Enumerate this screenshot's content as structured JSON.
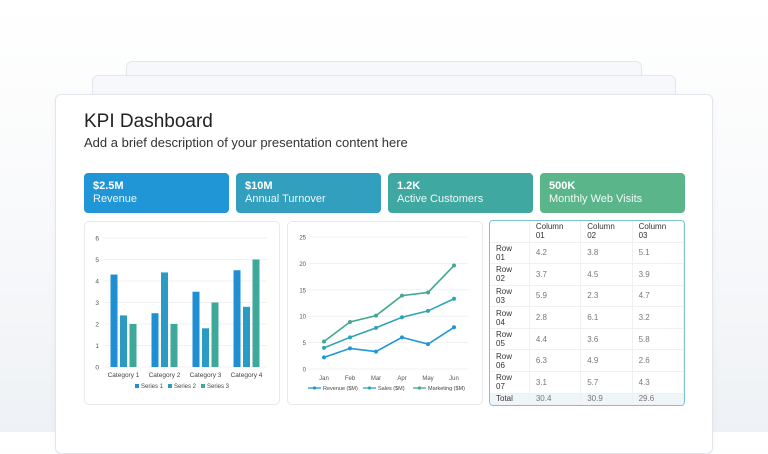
{
  "header": {
    "title": "KPI Dashboard",
    "subtitle": "Add a brief description of your presentation content here"
  },
  "kpis": [
    {
      "value": "$2.5M",
      "label": "Revenue",
      "color": "#2196d6"
    },
    {
      "value": "$10M",
      "label": "Annual Turnover",
      "color": "#339fbf"
    },
    {
      "value": "1.2K",
      "label": "Active Customers",
      "color": "#3fa8a0"
    },
    {
      "value": "500K",
      "label": "Monthly Web Visits",
      "color": "#5ab58a"
    }
  ],
  "chart_data": [
    {
      "type": "bar",
      "categories": [
        "Category 1",
        "Category 2",
        "Category 3",
        "Category 4"
      ],
      "ylim": [
        0,
        6
      ],
      "yticks": [
        "0",
        "1",
        "2",
        "3",
        "4",
        "5",
        "6"
      ],
      "legend": "bottom",
      "grid": true,
      "series": [
        {
          "name": "Series 1",
          "values": [
            4.3,
            2.5,
            3.5,
            4.5
          ],
          "color": "#1f8fd4"
        },
        {
          "name": "Series 2",
          "values": [
            2.4,
            4.4,
            1.8,
            2.8
          ],
          "color": "#2b9bc4"
        },
        {
          "name": "Series 3",
          "values": [
            2,
            2,
            3,
            5
          ],
          "color": "#3ea89a"
        }
      ]
    },
    {
      "type": "line",
      "categories": [
        "Jan",
        "Feb",
        "Mar",
        "Apr",
        "May",
        "Jun"
      ],
      "ylim": [
        0,
        25
      ],
      "yticks": [
        "0",
        "5",
        "10",
        "15",
        "20",
        "25"
      ],
      "legend": "bottom",
      "grid": true,
      "series": [
        {
          "name": "Revenue ($M)",
          "values": [
            2.2,
            3.9,
            3.3,
            6.0,
            4.7,
            7.9
          ],
          "color": "#2196d6"
        },
        {
          "name": "Sales ($M)",
          "values": [
            4.0,
            6.0,
            7.8,
            9.8,
            11.0,
            13.3
          ],
          "color": "#2fa4b5"
        },
        {
          "name": "Marketing ($M)",
          "values": [
            5.2,
            8.9,
            10.1,
            13.9,
            14.5,
            19.6
          ],
          "color": "#43a88f"
        }
      ]
    }
  ],
  "table": {
    "columns": [
      "",
      "Column 01",
      "Column 02",
      "Column 03"
    ],
    "rows": [
      [
        "Row 01",
        "4.2",
        "3.8",
        "5.1"
      ],
      [
        "Row 02",
        "3.7",
        "4.5",
        "3.9"
      ],
      [
        "Row 03",
        "5.9",
        "2.3",
        "4.7"
      ],
      [
        "Row 04",
        "2.8",
        "6.1",
        "3.2"
      ],
      [
        "Row 05",
        "4.4",
        "3.6",
        "5.8"
      ],
      [
        "Row 06",
        "6.3",
        "4.9",
        "2.6"
      ],
      [
        "Row 07",
        "3.1",
        "5.7",
        "4.3"
      ],
      [
        "Total",
        "30.4",
        "30.9",
        "29.6"
      ]
    ]
  }
}
